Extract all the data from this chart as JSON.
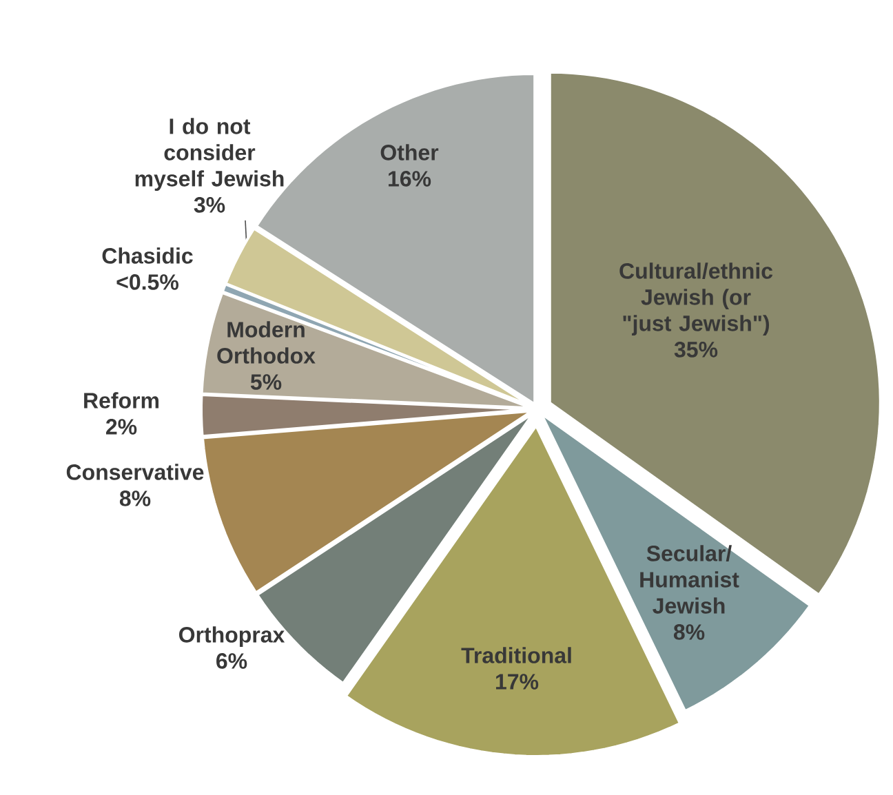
{
  "chart_data": {
    "type": "pie",
    "categories": [
      "Cultural/ethnic Jewish (or \"just Jewish\")",
      "Secular/ Humanist Jewish",
      "Traditional",
      "Orthoprax",
      "Conservative",
      "Reform",
      "Modern Orthodox",
      "Chasidic",
      "I do not consider myself Jewish",
      "Other"
    ],
    "values": [
      35,
      8,
      17,
      6,
      8,
      2,
      5,
      0.4,
      3,
      16
    ],
    "colors": [
      "#8b8a6c",
      "#7f9a9c",
      "#a8a35e",
      "#737f78",
      "#a48652",
      "#8f7d6e",
      "#b3ab99",
      "#8fa6b2",
      "#cfc795",
      "#a9adab"
    ],
    "value_labels": [
      "35%",
      "8%",
      "17%",
      "6%",
      "8%",
      "2%",
      "5%",
      "<0.5%",
      "3%",
      "16%"
    ]
  }
}
